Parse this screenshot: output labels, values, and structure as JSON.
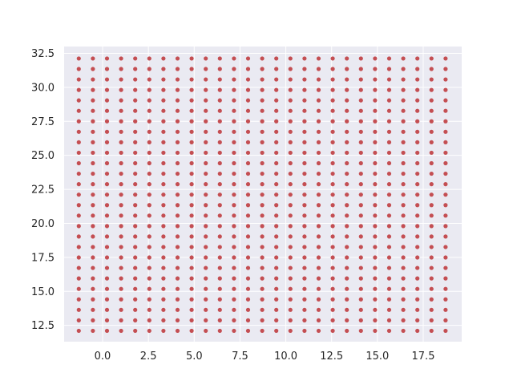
{
  "chart_data": {
    "type": "scatter",
    "title": "",
    "xlabel": "",
    "ylabel": "",
    "grid": true,
    "xlim": [
      -2.1,
      19.6
    ],
    "ylim": [
      11.3,
      33.0
    ],
    "x_ticks": [
      0.0,
      2.5,
      5.0,
      7.5,
      10.0,
      12.5,
      15.0,
      17.5
    ],
    "x_tick_labels": [
      "0.0",
      "2.5",
      "5.0",
      "7.5",
      "10.0",
      "12.5",
      "15.0",
      "17.5"
    ],
    "y_ticks": [
      12.5,
      15.0,
      17.5,
      20.0,
      22.5,
      25.0,
      27.5,
      30.0,
      32.5
    ],
    "y_tick_labels": [
      "12.5",
      "15.0",
      "17.5",
      "20.0",
      "22.5",
      "25.0",
      "27.5",
      "30.0",
      "32.5"
    ],
    "series": [
      {
        "grid_x": {
          "start": -1.3,
          "step": 0.77,
          "count": 27
        },
        "grid_y": {
          "start": 12.1,
          "step": 0.77,
          "count": 27
        },
        "color": "#c44e52"
      }
    ]
  },
  "colors": {
    "plot_background": "#eaeaf2",
    "grid": "#ffffff",
    "marker": "#c44e52",
    "tick_text": "#262626"
  }
}
